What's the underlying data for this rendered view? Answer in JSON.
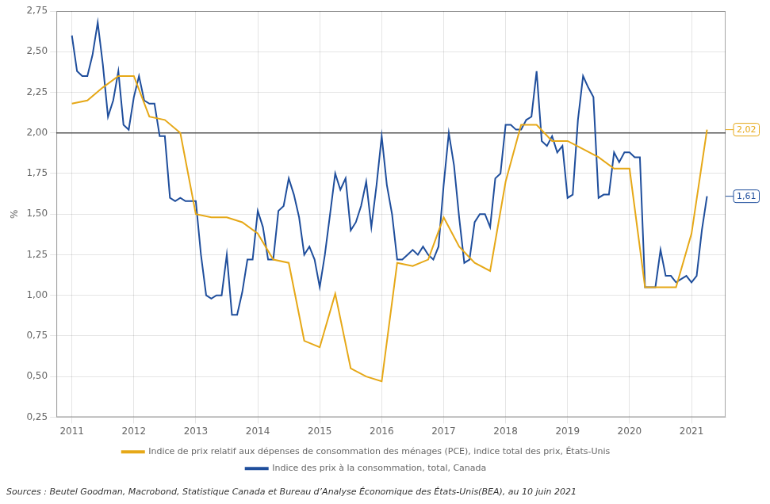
{
  "chart_data": {
    "type": "line",
    "y_label": "%",
    "source": "Sources : Beutel Goodman, Macrobond, Statistique Canada et Bureau d’Analyse Économique des États-Unis(BEA), au 10 juin 2021",
    "xlim": [
      2010.75,
      2021.55
    ],
    "xticks": [
      2011,
      2012,
      2013,
      2014,
      2015,
      2016,
      2017,
      2018,
      2019,
      2020,
      2021
    ],
    "ylim": [
      0.25,
      2.75
    ],
    "yticks": [
      {
        "value": 0.25,
        "label": "0,25"
      },
      {
        "value": 0.5,
        "label": "0,50"
      },
      {
        "value": 0.75,
        "label": "0,75"
      },
      {
        "value": 1.0,
        "label": "1,00"
      },
      {
        "value": 1.25,
        "label": "1,25"
      },
      {
        "value": 1.5,
        "label": "1,50"
      },
      {
        "value": 1.75,
        "label": "1,75"
      },
      {
        "value": 2.0,
        "label": "2,00"
      },
      {
        "value": 2.25,
        "label": "2,25"
      },
      {
        "value": 2.5,
        "label": "2,50"
      },
      {
        "value": 2.75,
        "label": "2,75"
      }
    ],
    "grid": true,
    "legend": "bottom",
    "reference_line": {
      "value": 2.0,
      "color": "#555555"
    },
    "annotations": [
      {
        "text": "2,02",
        "y": 2.02,
        "color": "#E6A817"
      },
      {
        "text": "1,61",
        "y": 1.61,
        "color": "#1F4E9C"
      }
    ],
    "series": [
      {
        "name": "Indice de prix relatif aux dépenses de consommation des ménages (PCE), indice total des prix, États-Unis",
        "color": "#E6A817",
        "x": [
          2011.0,
          2011.25,
          2011.5,
          2011.75,
          2012.0,
          2012.25,
          2012.5,
          2012.75,
          2013.0,
          2013.25,
          2013.5,
          2013.75,
          2014.0,
          2014.25,
          2014.5,
          2014.75,
          2015.0,
          2015.25,
          2015.5,
          2015.75,
          2016.0,
          2016.25,
          2016.5,
          2016.75,
          2017.0,
          2017.25,
          2017.5,
          2017.75,
          2018.0,
          2018.25,
          2018.5,
          2018.75,
          2019.0,
          2019.25,
          2019.5,
          2019.75,
          2020.0,
          2020.25,
          2020.5,
          2020.75,
          2021.0,
          2021.25
        ],
        "values": [
          2.18,
          2.2,
          2.28,
          2.35,
          2.35,
          2.1,
          2.08,
          2.0,
          1.5,
          1.48,
          1.48,
          1.45,
          1.38,
          1.22,
          1.2,
          0.72,
          0.68,
          1.01,
          0.55,
          0.5,
          0.47,
          1.2,
          1.18,
          1.22,
          1.48,
          1.3,
          1.2,
          1.15,
          1.7,
          2.05,
          2.05,
          1.95,
          1.95,
          1.9,
          1.85,
          1.78,
          1.78,
          1.05,
          1.05,
          1.05,
          1.38,
          2.02
        ]
      },
      {
        "name": "Indice des prix à la consommation, total, Canada",
        "color": "#1F4E9C",
        "x": [
          2011.0,
          2011.083,
          2011.167,
          2011.25,
          2011.333,
          2011.417,
          2011.5,
          2011.583,
          2011.667,
          2011.75,
          2011.833,
          2011.917,
          2012.0,
          2012.083,
          2012.167,
          2012.25,
          2012.333,
          2012.417,
          2012.5,
          2012.583,
          2012.667,
          2012.75,
          2012.833,
          2012.917,
          2013.0,
          2013.083,
          2013.167,
          2013.25,
          2013.333,
          2013.417,
          2013.5,
          2013.583,
          2013.667,
          2013.75,
          2013.833,
          2013.917,
          2014.0,
          2014.083,
          2014.167,
          2014.25,
          2014.333,
          2014.417,
          2014.5,
          2014.583,
          2014.667,
          2014.75,
          2014.833,
          2014.917,
          2015.0,
          2015.083,
          2015.167,
          2015.25,
          2015.333,
          2015.417,
          2015.5,
          2015.583,
          2015.667,
          2015.75,
          2015.833,
          2015.917,
          2016.0,
          2016.083,
          2016.167,
          2016.25,
          2016.333,
          2016.417,
          2016.5,
          2016.583,
          2016.667,
          2016.75,
          2016.833,
          2016.917,
          2017.0,
          2017.083,
          2017.167,
          2017.25,
          2017.333,
          2017.417,
          2017.5,
          2017.583,
          2017.667,
          2017.75,
          2017.833,
          2017.917,
          2018.0,
          2018.083,
          2018.167,
          2018.25,
          2018.333,
          2018.417,
          2018.5,
          2018.583,
          2018.667,
          2018.75,
          2018.833,
          2018.917,
          2019.0,
          2019.083,
          2019.167,
          2019.25,
          2019.333,
          2019.417,
          2019.5,
          2019.583,
          2019.667,
          2019.75,
          2019.833,
          2019.917,
          2020.0,
          2020.083,
          2020.167,
          2020.25,
          2020.333,
          2020.417,
          2020.5,
          2020.583,
          2020.667,
          2020.75,
          2020.833,
          2020.917,
          2021.0,
          2021.083,
          2021.167,
          2021.25
        ],
        "values": [
          2.6,
          2.38,
          2.35,
          2.35,
          2.48,
          2.68,
          2.42,
          2.1,
          2.2,
          2.38,
          2.05,
          2.02,
          2.22,
          2.35,
          2.2,
          2.18,
          2.18,
          1.98,
          1.98,
          1.6,
          1.58,
          1.6,
          1.58,
          1.58,
          1.58,
          1.25,
          1.0,
          0.98,
          1.0,
          1.0,
          1.25,
          0.88,
          0.88,
          1.02,
          1.22,
          1.22,
          1.52,
          1.42,
          1.22,
          1.22,
          1.52,
          1.55,
          1.72,
          1.62,
          1.48,
          1.25,
          1.3,
          1.22,
          1.05,
          1.25,
          1.5,
          1.75,
          1.65,
          1.72,
          1.4,
          1.45,
          1.55,
          1.7,
          1.42,
          1.68,
          1.98,
          1.68,
          1.5,
          1.22,
          1.22,
          1.25,
          1.28,
          1.25,
          1.3,
          1.25,
          1.22,
          1.3,
          1.68,
          2.0,
          1.8,
          1.48,
          1.2,
          1.22,
          1.45,
          1.5,
          1.5,
          1.42,
          1.72,
          1.75,
          2.05,
          2.05,
          2.02,
          2.02,
          2.08,
          2.1,
          2.38,
          1.95,
          1.92,
          1.98,
          1.88,
          1.92,
          1.6,
          1.62,
          2.08,
          2.35,
          2.28,
          2.22,
          1.6,
          1.62,
          1.62,
          1.88,
          1.82,
          1.88,
          1.88,
          1.85,
          1.85,
          1.05,
          1.05,
          1.05,
          1.28,
          1.12,
          1.12,
          1.08,
          1.1,
          1.12,
          1.08,
          1.12,
          1.4,
          1.61
        ]
      }
    ]
  }
}
